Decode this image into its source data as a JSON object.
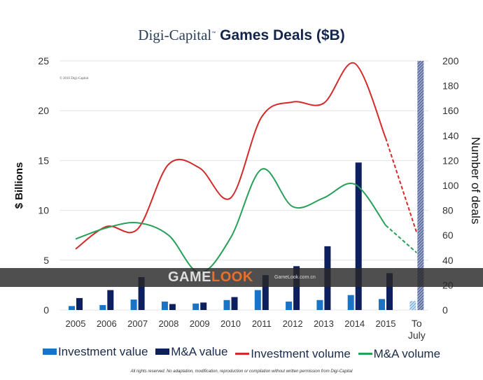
{
  "title_brand": "Digi-Capital",
  "title_tm": "™",
  "title_main": "Games Deals ($B)",
  "copyright": "© 2016 Digi-Capital",
  "footer": "All rights reserved. No adaptation, modification, reproduction or compilation without written permission from Digi-Capital",
  "watermark": {
    "logo_a": "GAME",
    "logo_b": "LOOK",
    "sub": "GameLook.com.cn"
  },
  "chart_data": {
    "type": "bar+line",
    "title": "Digi-Capital Games Deals ($B)",
    "categories": [
      "2005",
      "2006",
      "2007",
      "2008",
      "2009",
      "2010",
      "2011",
      "2012",
      "2013",
      "2014",
      "2015",
      "To July"
    ],
    "ylabel": "$ Billions",
    "y2label": "Number of deals",
    "ylim": [
      0,
      25
    ],
    "y2lim": [
      0,
      200
    ],
    "yticks": [
      "0",
      "5",
      "10",
      "15",
      "20",
      "25"
    ],
    "y2ticks": [
      "0",
      "20",
      "40",
      "60",
      "80",
      "100",
      "120",
      "140",
      "160",
      "180",
      "200"
    ],
    "grid": true,
    "legend_position": "bottom",
    "series": [
      {
        "name": "Investment value",
        "type": "bar",
        "axis": "left",
        "color": "#1a73c4",
        "values": [
          0.4,
          0.5,
          1.05,
          0.85,
          0.65,
          1.0,
          2.0,
          0.85,
          1.0,
          1.5,
          1.1,
          0.9
        ]
      },
      {
        "name": "M&A value",
        "type": "bar",
        "axis": "left",
        "color": "#0d1f5c",
        "values": [
          1.2,
          2.0,
          3.3,
          0.6,
          0.75,
          1.3,
          3.5,
          4.4,
          6.4,
          14.8,
          3.7,
          25
        ]
      },
      {
        "name": "Investment volume",
        "type": "line",
        "axis": "right",
        "color": "#d42a2a",
        "values": [
          49,
          67,
          65,
          117,
          114,
          90,
          155,
          167,
          166,
          198,
          138,
          62
        ]
      },
      {
        "name": "M&A volume",
        "type": "line",
        "axis": "right",
        "color": "#27a05a",
        "values": [
          57,
          66,
          70,
          60,
          30,
          58,
          113,
          83,
          90,
          101,
          68,
          46
        ]
      }
    ],
    "partial_period": "To July"
  }
}
